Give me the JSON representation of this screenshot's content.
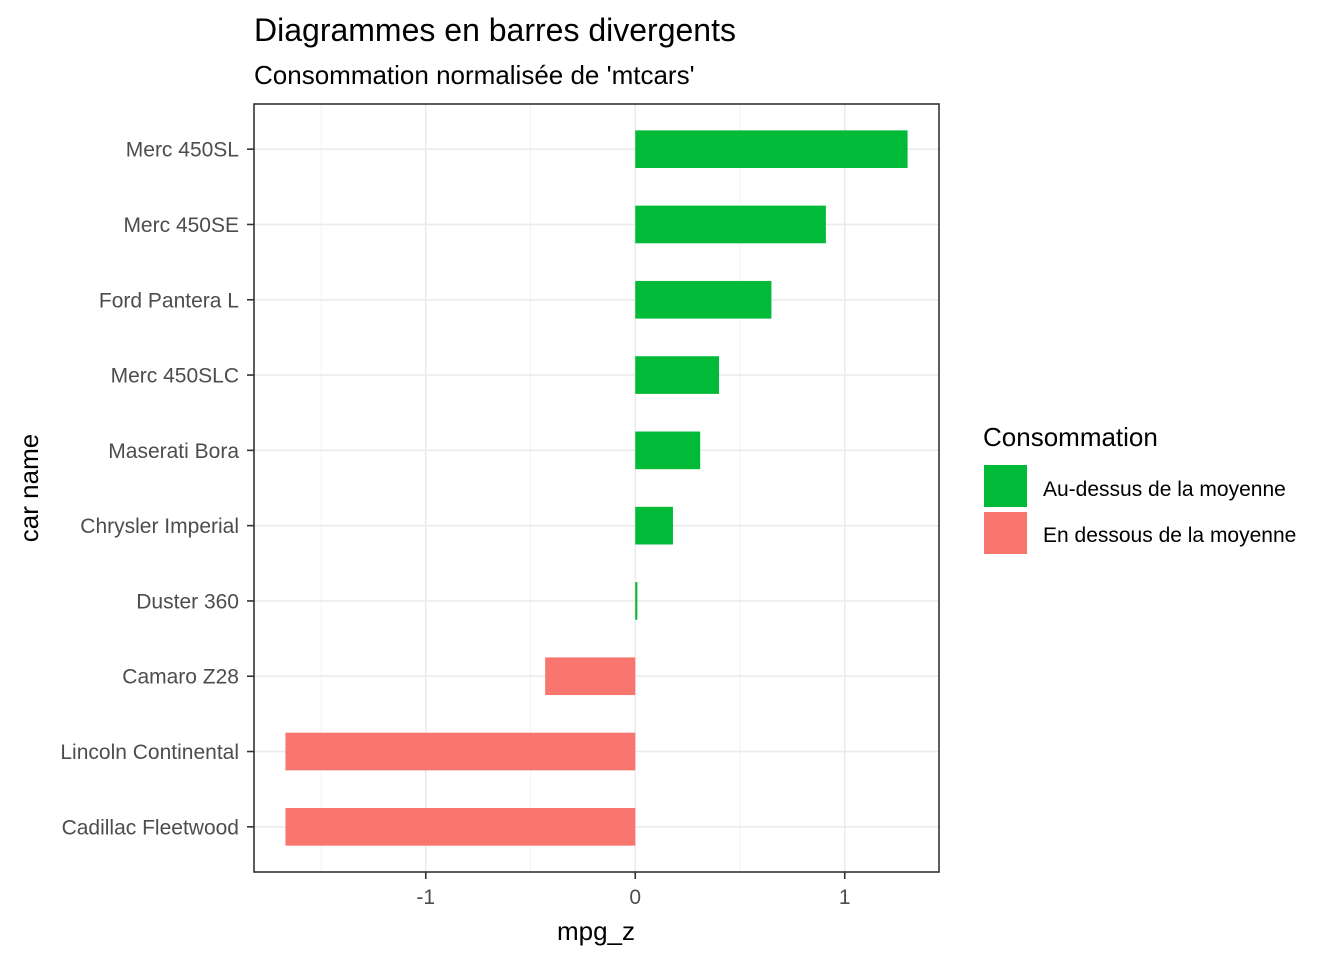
{
  "chart_data": {
    "type": "bar",
    "orientation": "horizontal",
    "title": "Diagrammes en barres divergents",
    "subtitle": "Consommation normalisée de 'mtcars'",
    "xlabel": "mpg_z",
    "ylabel": "car name",
    "xlim": [
      -1.82,
      1.45
    ],
    "x_ticks": [
      -1,
      0,
      1
    ],
    "x_tick_labels": [
      "-1",
      "0",
      "1"
    ],
    "x_minor_ticks": [
      -1.5,
      -0.5,
      0.5
    ],
    "grid": true,
    "legend_position": "right",
    "legend": {
      "title": "Consommation",
      "entries": [
        {
          "label": "Au-dessus de la moyenne",
          "color": "#00BA38"
        },
        {
          "label": "En dessous de la moyenne",
          "color": "#F8766D"
        }
      ]
    },
    "categories": [
      "Merc 450SL",
      "Merc 450SE",
      "Ford Pantera L",
      "Merc 450SLC",
      "Maserati Bora",
      "Chrysler Imperial",
      "Duster 360",
      "Camaro Z28",
      "Lincoln Continental",
      "Cadillac Fleetwood"
    ],
    "values": [
      1.3,
      0.91,
      0.65,
      0.4,
      0.31,
      0.18,
      0.01,
      -0.43,
      -1.67,
      -1.67
    ],
    "colors": {
      "above": "#00BA38",
      "below": "#F8766D"
    }
  }
}
